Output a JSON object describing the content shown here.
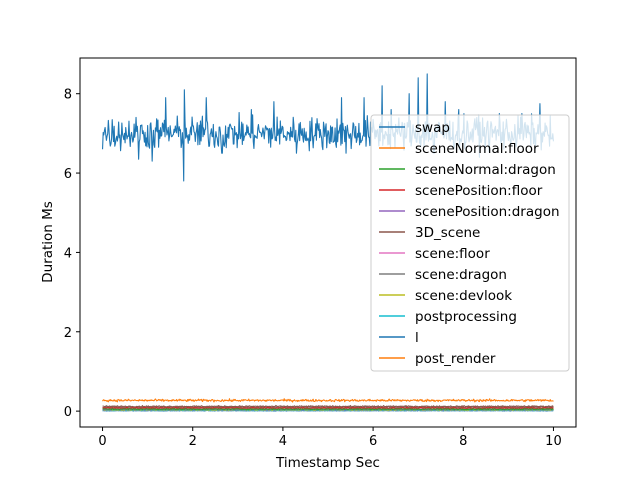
{
  "chart_data": {
    "type": "line",
    "title": "",
    "xlabel": "Timestamp Sec",
    "ylabel": "Duration Ms",
    "xlim": [
      -0.5,
      10.5
    ],
    "ylim": [
      -0.4,
      8.9
    ],
    "xticks": [
      0,
      2,
      4,
      6,
      8,
      10
    ],
    "yticks": [
      0,
      2,
      4,
      6,
      8
    ],
    "xtick_labels": [
      "0",
      "2",
      "4",
      "6",
      "8",
      "10"
    ],
    "ytick_labels": [
      "0",
      "2",
      "4",
      "6",
      "8"
    ],
    "grid": false,
    "legend_position": "right",
    "series": [
      {
        "name": "swap",
        "color": "#1f77b4",
        "base": 7.0,
        "noise": 0.2,
        "spikes": [
          [
            0.0,
            6.6
          ],
          [
            0.15,
            7.7
          ],
          [
            0.8,
            6.35
          ],
          [
            1.1,
            6.3
          ],
          [
            1.4,
            7.9
          ],
          [
            1.8,
            5.8
          ],
          [
            1.82,
            8.1
          ],
          [
            2.3,
            7.9
          ],
          [
            2.65,
            6.5
          ],
          [
            3.3,
            7.6
          ],
          [
            3.8,
            7.8
          ],
          [
            4.3,
            6.5
          ],
          [
            5.3,
            7.9
          ],
          [
            5.4,
            6.5
          ],
          [
            5.8,
            7.9
          ],
          [
            6.2,
            8.2
          ],
          [
            6.4,
            7.6
          ],
          [
            6.8,
            8.0
          ],
          [
            7.0,
            8.4
          ],
          [
            7.2,
            8.5
          ],
          [
            7.35,
            6.5
          ],
          [
            7.6,
            7.8
          ],
          [
            7.9,
            7.6
          ],
          [
            8.3,
            7.4
          ],
          [
            8.8,
            7.5
          ],
          [
            9.3,
            7.5
          ],
          [
            9.7,
            7.75
          ],
          [
            10.0,
            6.8
          ]
        ]
      },
      {
        "name": "sceneNormal:floor",
        "color": "#ff7f0e",
        "base": 0.27,
        "noise": 0.015,
        "spikes": []
      },
      {
        "name": "sceneNormal:dragon",
        "color": "#2ca02c",
        "base": 0.05,
        "noise": 0.006,
        "spikes": []
      },
      {
        "name": "scenePosition:floor",
        "color": "#d62728",
        "base": 0.08,
        "noise": 0.006,
        "spikes": []
      },
      {
        "name": "scenePosition:dragon",
        "color": "#9467bd",
        "base": 0.04,
        "noise": 0.006,
        "spikes": []
      },
      {
        "name": "3D_scene",
        "color": "#8c564b",
        "base": 0.12,
        "noise": 0.008,
        "spikes": []
      },
      {
        "name": "scene:floor",
        "color": "#e377c2",
        "base": 0.06,
        "noise": 0.006,
        "spikes": []
      },
      {
        "name": "scene:dragon",
        "color": "#7f7f7f",
        "base": 0.1,
        "noise": 0.008,
        "spikes": []
      },
      {
        "name": "scene:devlook",
        "color": "#bcbd22",
        "base": 0.03,
        "noise": 0.005,
        "spikes": []
      },
      {
        "name": "postprocessing",
        "color": "#17becf",
        "base": 0.02,
        "noise": 0.004,
        "spikes": []
      },
      {
        "name": "l",
        "color": "#1f77b4",
        "base": 0.01,
        "noise": 0.003,
        "spikes": []
      },
      {
        "name": "post_render",
        "color": "#ff7f0e",
        "base": 0.02,
        "noise": 0.004,
        "spikes": []
      }
    ]
  }
}
